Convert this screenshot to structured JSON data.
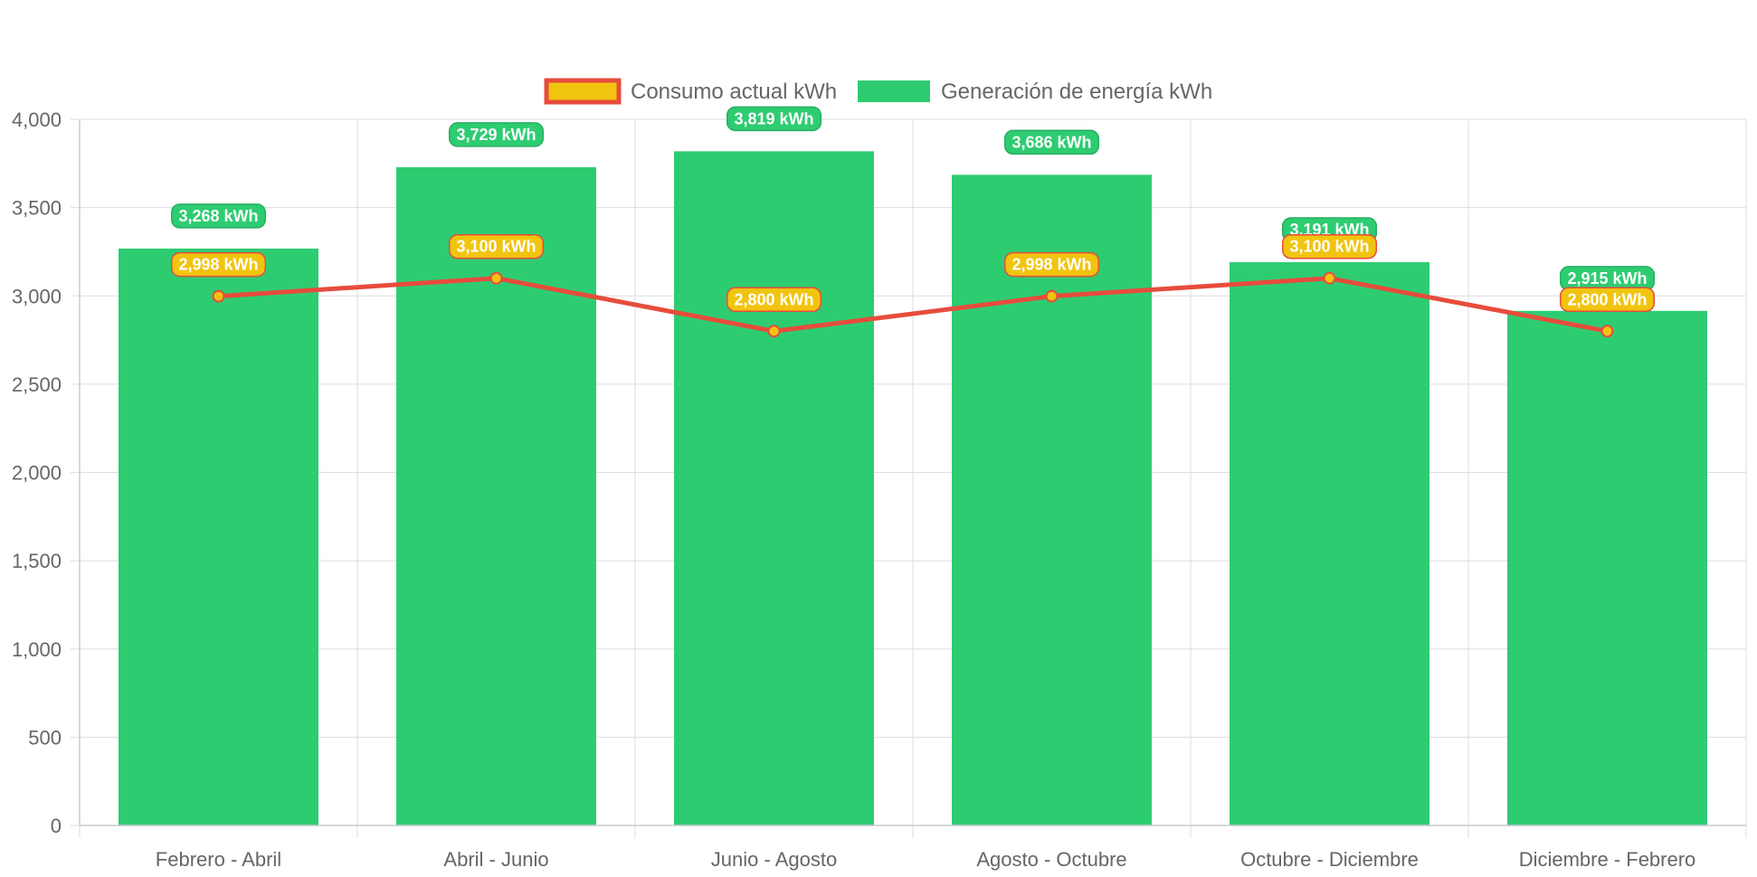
{
  "chart_data": {
    "type": "bar",
    "categories": [
      "Febrero - Abril",
      "Abril - Junio",
      "Junio - Agosto",
      "Agosto - Octubre",
      "Octubre - Diciembre",
      "Diciembre - Febrero"
    ],
    "series": [
      {
        "name": "Consumo actual kWh",
        "type": "line",
        "values": [
          2998,
          3100,
          2800,
          2998,
          3100,
          2800
        ],
        "labels": [
          "2,998 kWh",
          "3,100 kWh",
          "2,800 kWh",
          "2,998 kWh",
          "3,100 kWh",
          "2,800 kWh"
        ],
        "color": "#e74c3c",
        "fill_color": "#f1c40f"
      },
      {
        "name": "Generación de energía kWh",
        "type": "bar",
        "values": [
          3268,
          3729,
          3819,
          3686,
          3191,
          2915
        ],
        "labels": [
          "3,268 kWh",
          "3,729 kWh",
          "3,819 kWh",
          "3,686 kWh",
          "3,191 kWh",
          "2,915 kWh"
        ],
        "color": "#2ecc71",
        "border_color": "#27ae60"
      }
    ],
    "y_ticks": [
      "0",
      "500",
      "1,000",
      "1,500",
      "2,000",
      "2,500",
      "3,000",
      "3,500",
      "4,000"
    ],
    "ylim": [
      0,
      4000
    ],
    "grid": true,
    "legend_position": "top",
    "xlabel": "",
    "ylabel": ""
  }
}
